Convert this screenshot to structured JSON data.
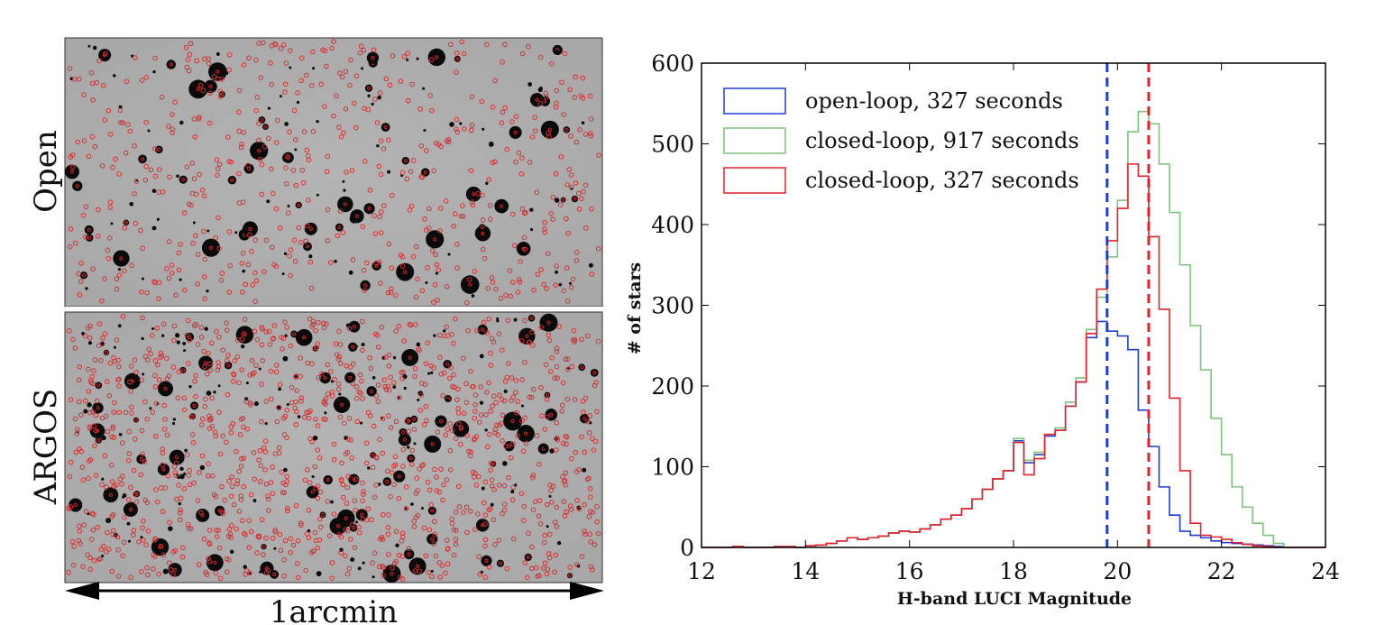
{
  "images": {
    "top_label": "Open",
    "bottom_label": "ARGOS",
    "scale_label": "1arcmin"
  },
  "chart_data": {
    "type": "line",
    "xlabel": "H-band LUCI Magnitude",
    "ylabel": "# of stars",
    "xlim": [
      12,
      24
    ],
    "ylim": [
      0,
      600
    ],
    "xticks": [
      12,
      14,
      16,
      18,
      20,
      22,
      24
    ],
    "yticks": [
      0,
      100,
      200,
      300,
      400,
      500,
      600
    ],
    "legend_position": "top-left",
    "bin_edges": [
      12.0,
      12.2,
      12.4,
      12.6,
      12.8,
      13.0,
      13.2,
      13.4,
      13.6,
      13.8,
      14.0,
      14.2,
      14.4,
      14.6,
      14.8,
      15.0,
      15.2,
      15.4,
      15.6,
      15.8,
      16.0,
      16.2,
      16.4,
      16.6,
      16.8,
      17.0,
      17.2,
      17.4,
      17.6,
      17.8,
      18.0,
      18.2,
      18.4,
      18.6,
      18.8,
      19.0,
      19.2,
      19.4,
      19.6,
      19.8,
      20.0,
      20.2,
      20.4,
      20.6,
      20.8,
      21.0,
      21.2,
      21.4,
      21.6,
      21.8,
      22.0,
      22.2,
      22.4,
      22.6,
      22.8,
      23.0,
      23.2,
      23.4,
      23.6,
      23.8,
      24.0
    ],
    "series": [
      {
        "name": "open-loop, 327 seconds",
        "color": "#1f3bd6",
        "values": [
          0,
          0,
          0,
          1,
          0,
          0,
          0,
          1,
          1,
          0,
          2,
          3,
          5,
          8,
          12,
          10,
          12,
          14,
          18,
          20,
          19,
          23,
          28,
          35,
          40,
          48,
          60,
          72,
          85,
          95,
          132,
          105,
          115,
          138,
          145,
          175,
          205,
          260,
          280,
          268,
          262,
          245,
          170,
          125,
          75,
          40,
          20,
          15,
          12,
          8,
          6,
          5,
          4,
          3,
          2,
          1,
          0,
          0,
          0,
          0
        ]
      },
      {
        "name": "closed-loop, 917 seconds",
        "color": "#7cc47c",
        "values": [
          0,
          0,
          0,
          1,
          0,
          0,
          0,
          1,
          1,
          0,
          2,
          3,
          5,
          8,
          12,
          10,
          12,
          14,
          18,
          20,
          19,
          23,
          28,
          35,
          40,
          48,
          60,
          72,
          85,
          95,
          135,
          108,
          118,
          140,
          148,
          180,
          210,
          270,
          310,
          360,
          430,
          515,
          540,
          525,
          475,
          415,
          350,
          275,
          220,
          160,
          115,
          75,
          50,
          30,
          15,
          5,
          0,
          0,
          0,
          0
        ]
      },
      {
        "name": "closed-loop, 327 seconds",
        "color": "#e8202a",
        "values": [
          0,
          0,
          0,
          1,
          0,
          0,
          0,
          1,
          1,
          0,
          2,
          3,
          5,
          8,
          12,
          10,
          12,
          14,
          18,
          20,
          19,
          23,
          28,
          35,
          40,
          48,
          60,
          72,
          85,
          95,
          130,
          90,
          110,
          140,
          145,
          175,
          205,
          265,
          320,
          380,
          420,
          475,
          460,
          385,
          295,
          185,
          95,
          30,
          15,
          13,
          10,
          6,
          4,
          2,
          1,
          0,
          0,
          0,
          0,
          0
        ]
      }
    ],
    "vlines": [
      {
        "x": 19.8,
        "color": "#1f3bd6"
      },
      {
        "x": 20.6,
        "color": "#e8202a"
      }
    ]
  }
}
